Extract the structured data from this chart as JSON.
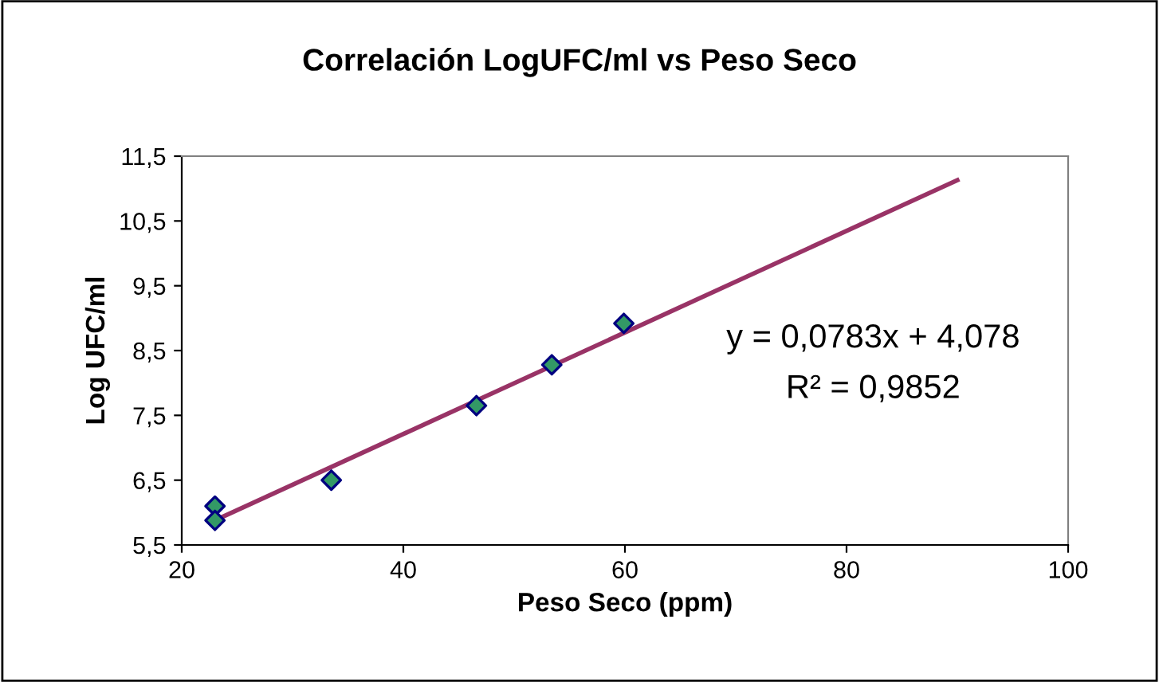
{
  "chart_data": {
    "type": "scatter",
    "title": "Correlación LogUFC/ml vs Peso Seco",
    "xlabel": "Peso Seco (ppm)",
    "ylabel": "Log UFC/ml",
    "series": [
      {
        "color": "#339966",
        "x": [
          23.0,
          23.0,
          33.5,
          46.6,
          53.4,
          59.9
        ],
        "values": [
          6.1,
          5.88,
          6.5,
          7.65,
          8.28,
          8.92
        ],
        "marker": "diamond"
      },
      {
        "type": "line",
        "color": "#993366",
        "x": [
          23,
          90
        ],
        "values": [
          5.88,
          11.13
        ],
        "marker": "none",
        "line_style": "solid"
      }
    ],
    "annotations": [
      "y = 0,0783x + 4,078",
      "R² = 0,9852"
    ],
    "xlim": [
      20,
      100
    ],
    "xticks": [
      20,
      40,
      60,
      80,
      100
    ],
    "ylim": [
      5.5,
      11.5
    ],
    "yticks": [
      {
        "value": 5.5,
        "label": "5,5"
      },
      {
        "value": 6.5,
        "label": "6,5"
      },
      {
        "value": 7.5,
        "label": "7,5"
      },
      {
        "value": 8.5,
        "label": "8,5"
      },
      {
        "value": 9.5,
        "label": "9,5"
      },
      {
        "value": 10.5,
        "label": "10,5"
      },
      {
        "value": 11.5,
        "label": "11,5"
      }
    ],
    "grid": false,
    "legend": false
  }
}
